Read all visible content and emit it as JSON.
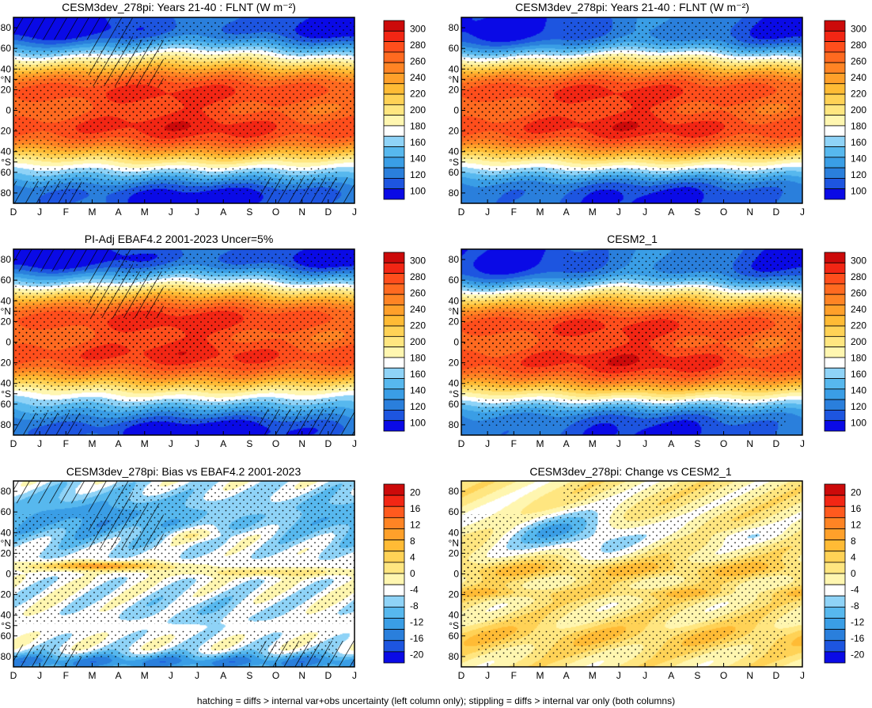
{
  "footnote": "hatching = diffs > internal var+obs uncertainty (left column only); stippling = diffs > internal var only (both columns)",
  "colors": {
    "abs_scale": [
      "#0a0ae6",
      "#1d55e0",
      "#2a7fdc",
      "#3a9ee6",
      "#57b8ee",
      "#8fd3f7",
      "#ffffff",
      "#fff6b0",
      "#ffe680",
      "#ffd256",
      "#ffbb35",
      "#ffa02a",
      "#ff8424",
      "#ff6a20",
      "#ff4e1c",
      "#f22614",
      "#cc0a0a"
    ],
    "diff_scale": [
      "#0a0ae6",
      "#1d55e0",
      "#2a7fdc",
      "#3a9ee6",
      "#57b8ee",
      "#8fd3f7",
      "#ffffff",
      "#fff6b0",
      "#ffe680",
      "#ffd256",
      "#ffbb35",
      "#ffa02a",
      "#ff8424",
      "#ff5a1e",
      "#f22614",
      "#cc0a0a"
    ]
  },
  "chart_data": [
    {
      "type": "heatmap",
      "id": "p1",
      "title": "CESM3dev_278pi: Years 21-40 : FLNT (W m⁻²)",
      "x_ticks": [
        "D",
        "J",
        "F",
        "M",
        "A",
        "M",
        "J",
        "J",
        "A",
        "S",
        "O",
        "N",
        "D",
        "J"
      ],
      "y_ticks": [
        "80",
        "60",
        "40",
        "°N",
        "20",
        "0",
        "20",
        "40",
        "°S",
        "60",
        "80"
      ],
      "ylim": [
        -90,
        90
      ],
      "colorbar_labels": [
        "300",
        "280",
        "260",
        "240",
        "220",
        "200",
        "180",
        "160",
        "140",
        "120",
        "100"
      ],
      "field": "abs",
      "tropic_shift": 0,
      "polar_offset": 0,
      "hatching": true,
      "stippling": true
    },
    {
      "type": "heatmap",
      "id": "p2",
      "title": "CESM3dev_278pi: Years 21-40 : FLNT (W m⁻²)",
      "x_ticks": [
        "D",
        "J",
        "F",
        "M",
        "A",
        "M",
        "J",
        "J",
        "A",
        "S",
        "O",
        "N",
        "D",
        "J"
      ],
      "y_ticks": [
        "80",
        "60",
        "40",
        "°N",
        "20",
        "0",
        "20",
        "40",
        "°S",
        "60",
        "80"
      ],
      "ylim": [
        -90,
        90
      ],
      "colorbar_labels": [
        "300",
        "280",
        "260",
        "240",
        "220",
        "200",
        "180",
        "160",
        "140",
        "120",
        "100"
      ],
      "field": "abs",
      "tropic_shift": 0,
      "polar_offset": -6,
      "hatching": false,
      "stippling": true
    },
    {
      "type": "heatmap",
      "id": "p3",
      "title": "PI-Adj EBAF4.2 2001-2023 Uncer=5%",
      "x_ticks": [
        "D",
        "J",
        "F",
        "M",
        "A",
        "M",
        "J",
        "J",
        "A",
        "S",
        "O",
        "N",
        "D",
        "J"
      ],
      "y_ticks": [
        "80",
        "60",
        "40",
        "°N",
        "20",
        "0",
        "20",
        "40",
        "°S",
        "60",
        "80"
      ],
      "ylim": [
        -90,
        90
      ],
      "colorbar_labels": [
        "300",
        "280",
        "260",
        "240",
        "220",
        "200",
        "180",
        "160",
        "140",
        "120",
        "100"
      ],
      "field": "abs",
      "tropic_shift": 4,
      "polar_offset": 4,
      "hatching": true,
      "stippling": true
    },
    {
      "type": "heatmap",
      "id": "p4",
      "title": "CESM2_1",
      "x_ticks": [
        "D",
        "J",
        "F",
        "M",
        "A",
        "M",
        "J",
        "J",
        "A",
        "S",
        "O",
        "N",
        "D",
        "J"
      ],
      "y_ticks": [
        "80",
        "60",
        "40",
        "°N",
        "20",
        "0",
        "20",
        "40",
        "°S",
        "60",
        "80"
      ],
      "ylim": [
        -90,
        90
      ],
      "colorbar_labels": [
        "300",
        "280",
        "260",
        "240",
        "220",
        "200",
        "180",
        "160",
        "140",
        "120",
        "100"
      ],
      "field": "abs",
      "tropic_shift": -2,
      "polar_offset": -8,
      "hatching": false,
      "stippling": true
    },
    {
      "type": "heatmap",
      "id": "p5",
      "title": "CESM3dev_278pi: Bias vs EBAF4.2 2001-2023",
      "x_ticks": [
        "D",
        "J",
        "F",
        "M",
        "A",
        "M",
        "J",
        "J",
        "A",
        "S",
        "O",
        "N",
        "D",
        "J"
      ],
      "y_ticks": [
        "80",
        "60",
        "40",
        "°N",
        "20",
        "0",
        "20",
        "40",
        "°S",
        "60",
        "80"
      ],
      "ylim": [
        -90,
        90
      ],
      "colorbar_labels": [
        "20",
        "16",
        "12",
        "8",
        "4",
        "0",
        "-4",
        "-8",
        "-12",
        "-16",
        "-20"
      ],
      "field": "bias",
      "hatching": true,
      "stippling": true
    },
    {
      "type": "heatmap",
      "id": "p6",
      "title": "CESM3dev_278pi: Change vs CESM2_1",
      "x_ticks": [
        "D",
        "J",
        "F",
        "M",
        "A",
        "M",
        "J",
        "J",
        "A",
        "S",
        "O",
        "N",
        "D",
        "J"
      ],
      "y_ticks": [
        "80",
        "60",
        "40",
        "°N",
        "20",
        "0",
        "20",
        "40",
        "°S",
        "60",
        "80"
      ],
      "ylim": [
        -90,
        90
      ],
      "colorbar_labels": [
        "20",
        "16",
        "12",
        "8",
        "4",
        "0",
        "-4",
        "-8",
        "-12",
        "-16",
        "-20"
      ],
      "field": "change",
      "hatching": false,
      "stippling": true
    }
  ]
}
